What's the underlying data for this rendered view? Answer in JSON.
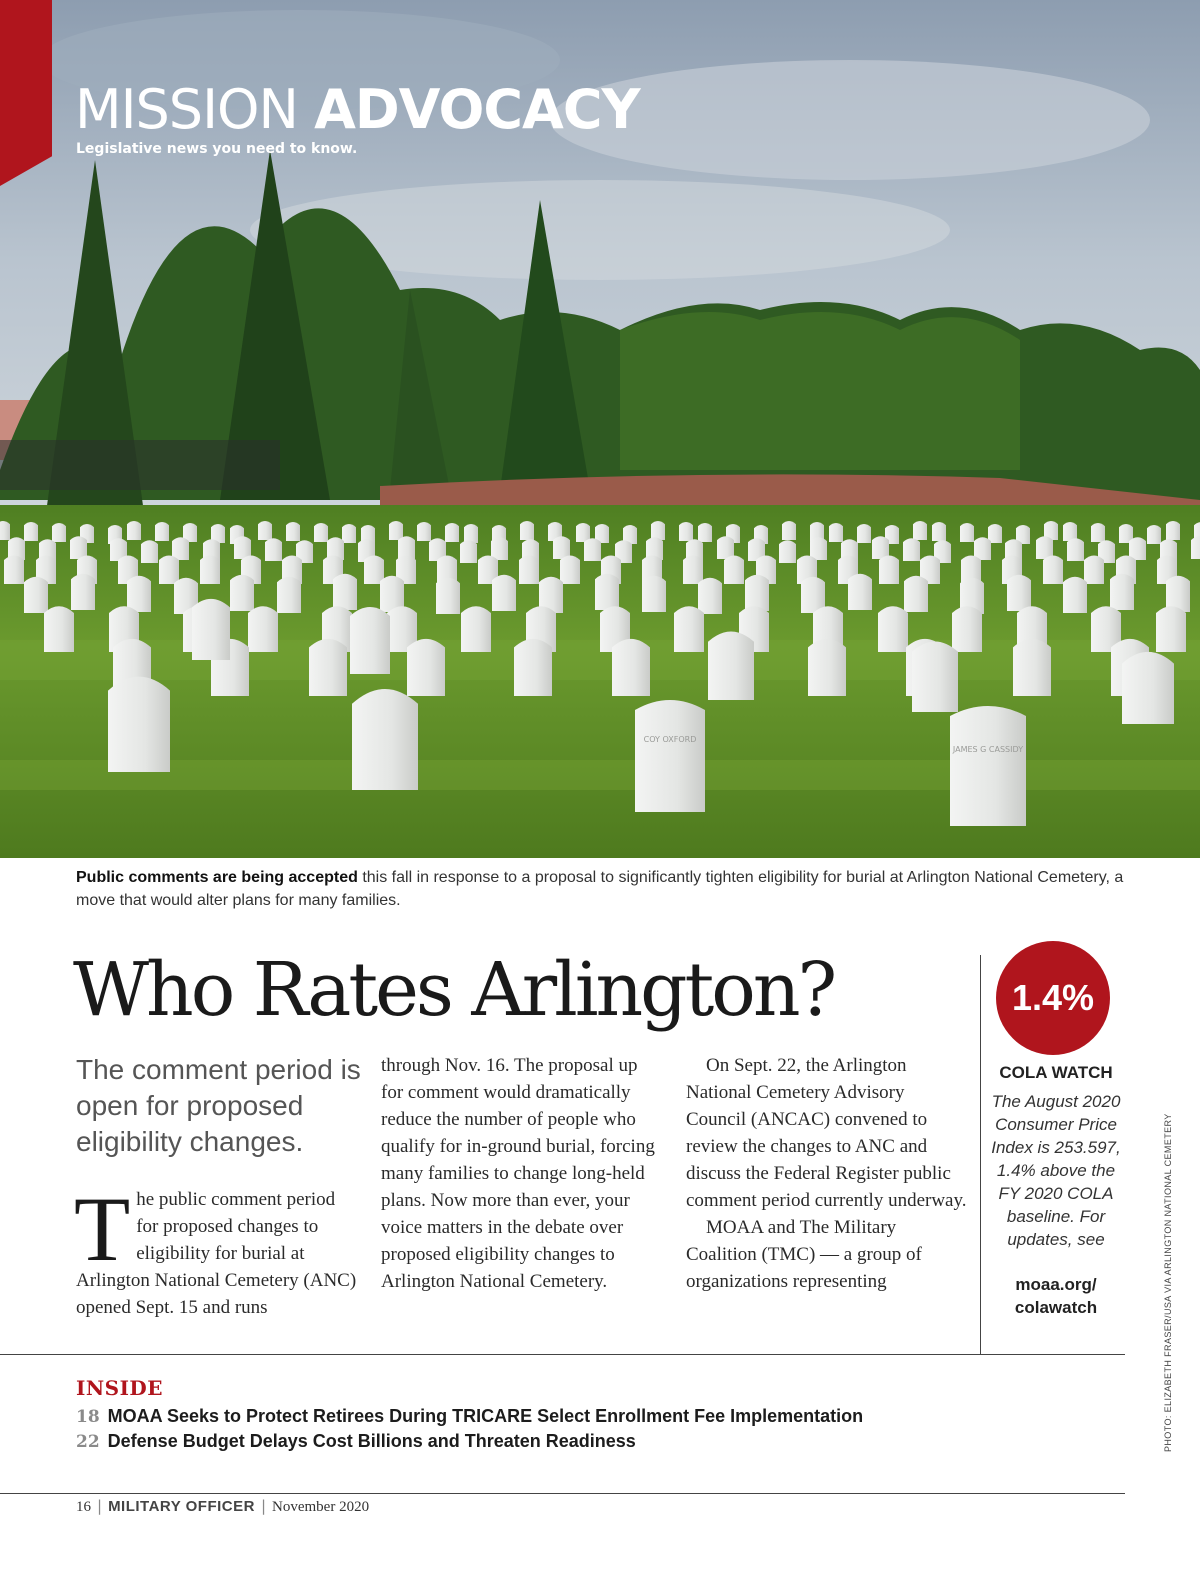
{
  "section": {
    "title_light": "MISSION ",
    "title_bold": "ADVOCACY",
    "subtitle": "Legislative news you need to know."
  },
  "photo": {
    "caption_bold": "Public comments are being accepted",
    "caption_rest": " this fall in response to a proposal to significantly tighten eligibility for burial at Arlington National Cemetery, a move that would alter plans for many families.",
    "headstone_inscriptions": [
      "COY OXFORD",
      "JAMES G CASSIDY"
    ],
    "credit": "PHOTO: ELIZABETH FRASER/USA VIA ARLINGTON NATIONAL CEMETERY"
  },
  "article": {
    "headline": "Who Rates Arlington?",
    "deck": "The comment period is open for proposed eligibility changes.",
    "dropcap": "T",
    "col1": "he public comment period for proposed changes to eligibility for burial at Arlington National Cemetery (ANC) opened Sept. 15 and runs",
    "col2": "through Nov. 16. The proposal up for comment would dramatically reduce the number of people who qualify for in-ground burial, forcing many families to change long-held plans. Now more than ever, your voice matters in the debate over proposed eligibility changes to Arlington National Cemetery.",
    "col3_p1": "On Sept. 22, the Arlington National Cemetery Advisory Council (ANCAC) convened to review the changes to ANC and discuss the Federal Register public comment period currently underway.",
    "col3_p2": "MOAA and The Military Coalition (TMC) — a group of organizations representing"
  },
  "sidebar": {
    "badge": "1.4%",
    "title": "COLA WATCH",
    "body": "The August 2020 Consumer Price Index is 253.597, 1.4% above the FY 2020 COLA baseline. For updates, see",
    "link": "moaa.org/ colawatch"
  },
  "inside": {
    "label": "INSIDE",
    "items": [
      {
        "page": "18",
        "title": "MOAA Seeks to Protect Retirees During TRICARE Select Enrollment Fee Implementation"
      },
      {
        "page": "22",
        "title": "Defense Budget Delays Cost Billions and Threaten Readiness"
      }
    ]
  },
  "footer": {
    "page": "16",
    "magazine": "MILITARY OFFICER",
    "date": "November 2020"
  },
  "colors": {
    "accent_red": "#b0151d",
    "grass": "#5f8f2a",
    "sky": "#a9b7c6"
  }
}
